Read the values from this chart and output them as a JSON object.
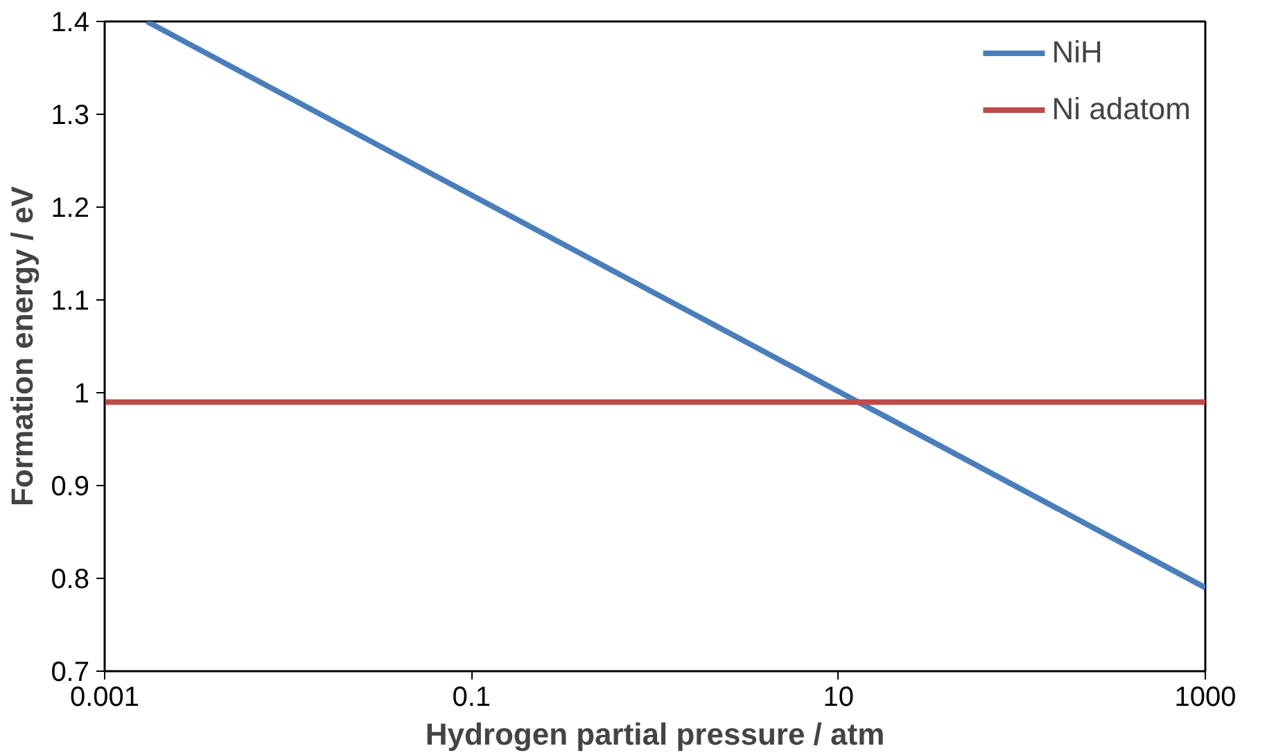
{
  "chart_data": {
    "type": "line",
    "xlabel": "Hydrogen partial pressure / atm",
    "ylabel": "Formation energy / eV",
    "log": "x",
    "xlim": [
      0.001,
      1000
    ],
    "xticks": [
      0.001,
      0.1,
      10,
      1000
    ],
    "ylim": [
      0.7,
      1.4
    ],
    "yticks": [
      0.7,
      0.8,
      0.9,
      1,
      1.1,
      1.2,
      1.3,
      1.4
    ],
    "grid": false,
    "legend": "top right",
    "marker": "none",
    "line_style": "solid",
    "series": [
      {
        "name": "NiH",
        "color": "#4a7ebb",
        "x": [
          0.0017,
          1000
        ],
        "values": [
          1.4,
          0.79
        ]
      },
      {
        "name": "Ni adatom",
        "color": "#be4b48",
        "x": [
          0.001,
          1000
        ],
        "values": [
          0.99,
          0.99
        ]
      }
    ]
  }
}
